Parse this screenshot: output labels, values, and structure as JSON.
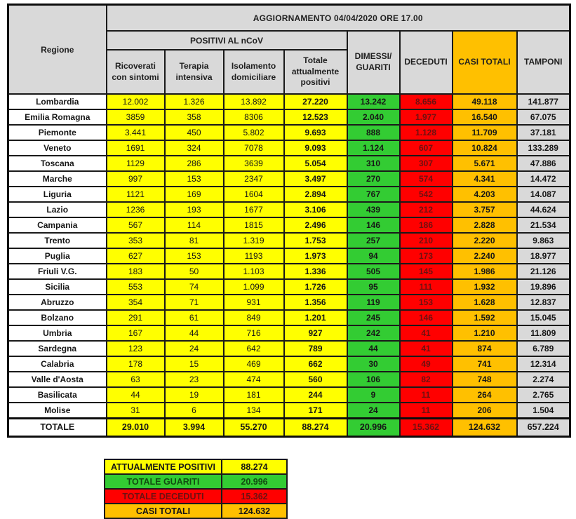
{
  "header": {
    "title": "AGGIORNAMENTO 04/04/2020 ORE 17.00",
    "region_label": "Regione",
    "positivi_group_label": "POSITIVI AL nCoV",
    "sub_columns": [
      "Ricoverati con sintomi",
      "Terapia intensiva",
      "Isolamento domiciliare",
      "Totale attualmente positivi"
    ],
    "dimessi_guariti_label": "DIMESSI/\nGUARITI",
    "deceduti_label": "DECEDUTI",
    "casi_totali_label": "CASI TOTALI",
    "tamponi_label": "TAMPONI"
  },
  "chart_data": {
    "type": "table",
    "title": "AGGIORNAMENTO 04/04/2020 ORE 17.00",
    "columns": [
      "Regione",
      "Ricoverati con sintomi",
      "Terapia intensiva",
      "Isolamento domiciliare",
      "Totale attualmente positivi",
      "DIMESSI/GUARITI",
      "DECEDUTI",
      "CASI TOTALI",
      "TAMPONI"
    ],
    "rows": [
      [
        "Lombardia",
        "12.002",
        "1.326",
        "13.892",
        "27.220",
        "13.242",
        "8.656",
        "49.118",
        "141.877"
      ],
      [
        "Emilia Romagna",
        "3859",
        "358",
        "8306",
        "12.523",
        "2.040",
        "1.977",
        "16.540",
        "67.075"
      ],
      [
        "Piemonte",
        "3.441",
        "450",
        "5.802",
        "9.693",
        "888",
        "1.128",
        "11.709",
        "37.181"
      ],
      [
        "Veneto",
        "1691",
        "324",
        "7078",
        "9.093",
        "1.124",
        "607",
        "10.824",
        "133.289"
      ],
      [
        "Toscana",
        "1129",
        "286",
        "3639",
        "5.054",
        "310",
        "307",
        "5.671",
        "47.886"
      ],
      [
        "Marche",
        "997",
        "153",
        "2347",
        "3.497",
        "270",
        "574",
        "4.341",
        "14.472"
      ],
      [
        "Liguria",
        "1121",
        "169",
        "1604",
        "2.894",
        "767",
        "542",
        "4.203",
        "14.087"
      ],
      [
        "Lazio",
        "1236",
        "193",
        "1677",
        "3.106",
        "439",
        "212",
        "3.757",
        "44.624"
      ],
      [
        "Campania",
        "567",
        "114",
        "1815",
        "2.496",
        "146",
        "186",
        "2.828",
        "21.534"
      ],
      [
        "Trento",
        "353",
        "81",
        "1.319",
        "1.753",
        "257",
        "210",
        "2.220",
        "9.863"
      ],
      [
        "Puglia",
        "627",
        "153",
        "1193",
        "1.973",
        "94",
        "173",
        "2.240",
        "18.977"
      ],
      [
        "Friuli V.G.",
        "183",
        "50",
        "1.103",
        "1.336",
        "505",
        "145",
        "1.986",
        "21.126"
      ],
      [
        "Sicilia",
        "553",
        "74",
        "1.099",
        "1.726",
        "95",
        "111",
        "1.932",
        "19.896"
      ],
      [
        "Abruzzo",
        "354",
        "71",
        "931",
        "1.356",
        "119",
        "153",
        "1.628",
        "12.837"
      ],
      [
        "Bolzano",
        "291",
        "61",
        "849",
        "1.201",
        "245",
        "146",
        "1.592",
        "15.045"
      ],
      [
        "Umbria",
        "167",
        "44",
        "716",
        "927",
        "242",
        "41",
        "1.210",
        "11.809"
      ],
      [
        "Sardegna",
        "123",
        "24",
        "642",
        "789",
        "44",
        "41",
        "874",
        "6.789"
      ],
      [
        "Calabria",
        "178",
        "15",
        "469",
        "662",
        "30",
        "49",
        "741",
        "12.314"
      ],
      [
        "Valle d'Aosta",
        "63",
        "23",
        "474",
        "560",
        "106",
        "82",
        "748",
        "2.274"
      ],
      [
        "Basilicata",
        "44",
        "19",
        "181",
        "244",
        "9",
        "11",
        "264",
        "2.765"
      ],
      [
        "Molise",
        "31",
        "6",
        "134",
        "171",
        "24",
        "11",
        "206",
        "1.504"
      ]
    ],
    "total_row": [
      "TOTALE",
      "29.010",
      "3.994",
      "55.270",
      "88.274",
      "20.996",
      "15.362",
      "124.632",
      "657.224"
    ]
  },
  "legend": {
    "items": [
      {
        "label": "ATTUALMENTE POSITIVI",
        "value": "88.274",
        "color": "#FFFF00"
      },
      {
        "label": "TOTALE GUARITI",
        "value": "20.996",
        "color": "#33CC33"
      },
      {
        "label": "TOTALE DECEDUTI",
        "value": "15.362",
        "color": "#FF0000"
      },
      {
        "label": "CASI TOTALI",
        "value": "124.632",
        "color": "#FFC000"
      }
    ]
  },
  "colors": {
    "yellow": "#FFFF00",
    "green": "#33CC33",
    "red": "#FF0000",
    "orange": "#FFC000",
    "header_gray": "#D9D9D9",
    "tamponi_gray": "#D9D9D9"
  }
}
